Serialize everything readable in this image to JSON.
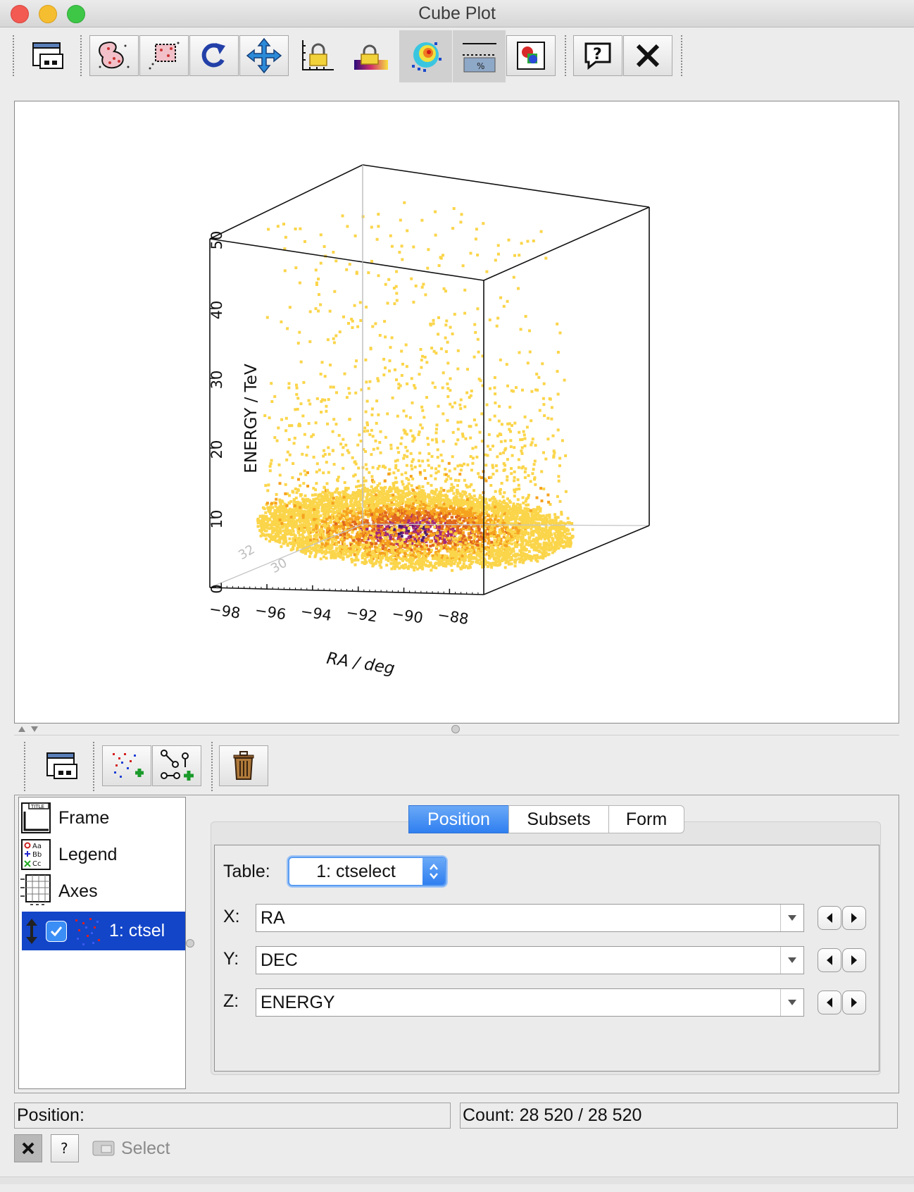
{
  "window": {
    "title": "Cube Plot"
  },
  "main_toolbar": {
    "buttons": [
      "window-icon",
      "blob-subset-icon",
      "region-subset-icon",
      "replot-icon",
      "navigate-icon",
      "lock-aspect-icon",
      "lock-aux-icon",
      "aux-colour-icon",
      "aux-legend-icon",
      "export-icon",
      "help-icon",
      "close-icon"
    ]
  },
  "plot": {
    "chart_data": {
      "type": "scatter",
      "xlabel": "RA / deg",
      "zlabel": "ENERGY / TeV",
      "y_partial_ticks": [
        "32",
        "30"
      ],
      "x_ticks": [
        "-98",
        "-96",
        "-94",
        "-92",
        "-90",
        "-88"
      ],
      "z_ticks": [
        "0",
        "10",
        "20",
        "30",
        "40",
        "50"
      ],
      "xlim": [
        -98.5,
        -86.5
      ],
      "zlim": [
        0,
        50
      ],
      "colormap": [
        "#fbd54a",
        "#f6a21f",
        "#e0661f",
        "#a4287a",
        "#4a1a72",
        "#0c0830"
      ],
      "density_peak": {
        "ra": -90.5,
        "energy": 1
      }
    }
  },
  "layer_toolbar": {
    "buttons": [
      "window-icon",
      "add-position-layer-icon",
      "add-pair-layer-icon",
      "delete-layer-icon"
    ]
  },
  "layers": {
    "frame": "Frame",
    "legend": "Legend",
    "axes": "Axes",
    "selected": "1: ctsel"
  },
  "tabs": {
    "position": "Position",
    "subsets": "Subsets",
    "form": "Form"
  },
  "table_select": {
    "label": "Table:",
    "value": "1: ctselect"
  },
  "coords": {
    "x": {
      "label": "X:",
      "value": "RA"
    },
    "y": {
      "label": "Y:",
      "value": "DEC"
    },
    "z": {
      "label": "Z:",
      "value": "ENERGY"
    }
  },
  "status": {
    "position": "Position:",
    "count": "Count: 28 520 / 28 520",
    "select": "Select"
  }
}
